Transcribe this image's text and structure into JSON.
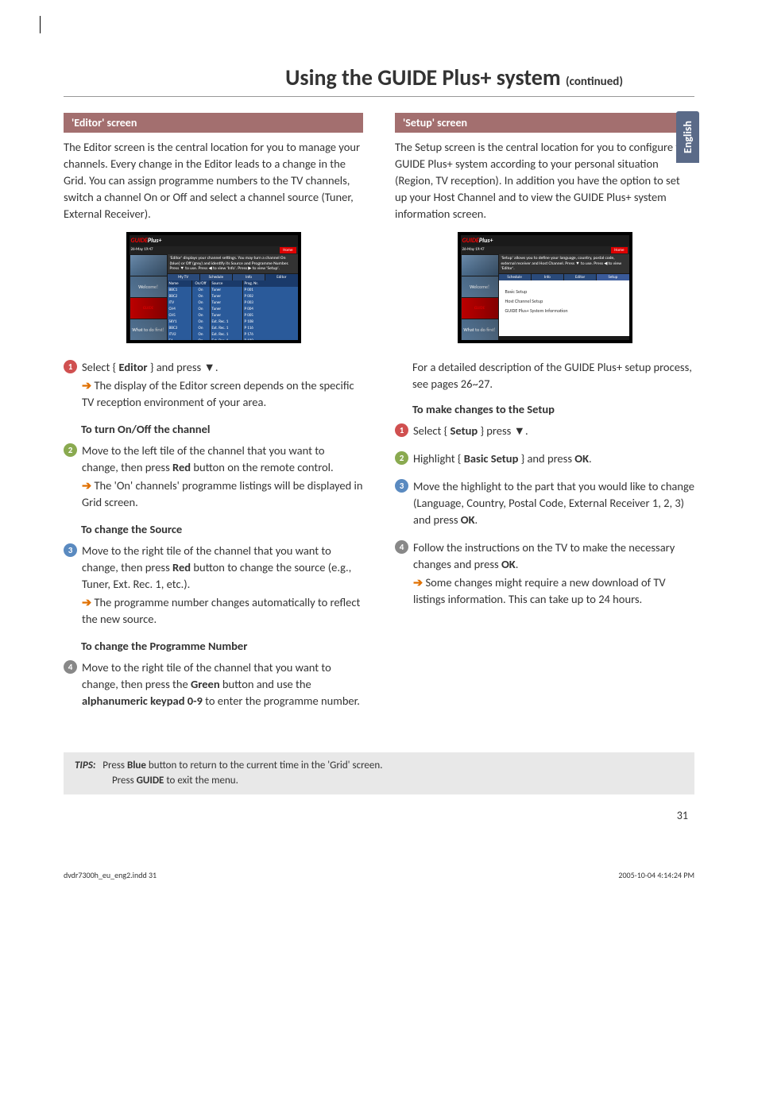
{
  "page_title_main": "Using the GUIDE Plus+ system",
  "page_title_cont": "(continued)",
  "language_tab": "English",
  "colors": {
    "header_bg": "#a36f6f",
    "tab_bg": "#5a6a88",
    "arrow": "#e07000",
    "tips_bg": "#e8e8e8",
    "step1": "#d05050",
    "step2": "#8aaa50",
    "step3": "#5a8ac0",
    "step4": "#888888"
  },
  "left": {
    "header": "'Editor' screen",
    "intro": "The Editor screen is the central location for you to manage your channels. Every change in the Editor leads to a change in the Grid. You can assign programme numbers to the TV channels, switch a channel On or Off and select a channel source (Tuner, External Receiver).",
    "screenshot": {
      "date": "26-May  19:47",
      "home": "Home",
      "desc": "'Editor' displays your channel settings. You may turn a channel On (blue) or Off (grey) and identify its Source and Programme Number. Press ▼ to use. Press ◀ to view 'Info'.  Press ▶ to view 'Setup'.",
      "tabs": [
        "My TV",
        "Schedule",
        "Info",
        "Editor"
      ],
      "thumbs": [
        "Welcome!",
        "",
        "What to do first!",
        ""
      ],
      "table_hdr": [
        "Name",
        "On/Off",
        "Source",
        "Prog. Nr."
      ],
      "rows": [
        [
          "BBC1",
          "On",
          "Tuner",
          "P 001"
        ],
        [
          "BBC2",
          "On",
          "Tuner",
          "P 002"
        ],
        [
          "ITV",
          "On",
          "Tuner",
          "P 003"
        ],
        [
          "CH4",
          "On",
          "Tuner",
          "P 004"
        ],
        [
          "CH5",
          "On",
          "Tuner",
          "P 005"
        ],
        [
          "SKY1",
          "On",
          "Ext. Rec. 1",
          "P 108"
        ],
        [
          "BBC3",
          "On",
          "Ext. Rec. 1",
          "P 116"
        ],
        [
          "ITV2",
          "On",
          "Ext. Rec. 1",
          "P 176"
        ],
        [
          "E4",
          "On",
          "Ext. Rec. 1",
          "P 189"
        ]
      ]
    },
    "step1_a": "Select { ",
    "step1_b": "Editor",
    "step1_c": " } and press ▼.",
    "step1_sub": "The display of the Editor screen depends on the specific TV reception environment of your area.",
    "sub1": "To turn On/Off the channel",
    "step2_a": "Move to the left tile of the channel that you want to change, then press ",
    "step2_b": "Red",
    "step2_c": " button on the remote control.",
    "step2_sub": "The 'On' channels' programme listings will be displayed in Grid screen.",
    "sub2": "To change the Source",
    "step3_a": "Move to the right tile of the channel that you want to change, then press ",
    "step3_b": "Red",
    "step3_c": " button to change the source (e.g., Tuner, Ext. Rec. 1, etc.).",
    "step3_sub": "The programme number changes automatically to reflect the new source.",
    "sub3": "To change the Programme Number",
    "step4_a": "Move to the right tile of the channel that you want to change, then press the ",
    "step4_b": "Green",
    "step4_c": " button and use the ",
    "step4_d": "alphanumeric keypad 0-9",
    "step4_e": " to enter the programme number."
  },
  "right": {
    "header": "'Setup' screen",
    "intro": "The Setup screen is the central location for you to configure the GUIDE Plus+ system according to your personal situation (Region, TV reception). In addition you have the option to set up your Host Channel and to view the GUIDE Plus+ system information screen.",
    "screenshot": {
      "date": "26-May  19:47",
      "home": "Home",
      "desc": "'Setup' allows you to define your language, country, postal code, external receiver and Host Channel. Press ▼ to use. Press ◀ to view 'Editor'.",
      "tabs": [
        "Schedule",
        "Info",
        "Editor",
        "Setup"
      ],
      "thumbs": [
        "Welcome!",
        "",
        "What to do first!",
        ""
      ],
      "rows": [
        "Basic Setup",
        "Host Channel Setup",
        "GUIDE Plus+ System Information"
      ]
    },
    "para": "For a detailed description of the GUIDE Plus+ setup process, see pages 26~27.",
    "sub1": "To make changes to the Setup",
    "step1_a": "Select { ",
    "step1_b": "Setup",
    "step1_c": " } press ▼.",
    "step2_a": "Highlight { ",
    "step2_b": "Basic Setup",
    "step2_c": " } and press ",
    "step2_d": "OK",
    "step2_e": ".",
    "step3_a": "Move the highlight to the part that you would like to change (Language, Country, Postal Code, External Receiver 1, 2, 3) and press ",
    "step3_b": "OK",
    "step3_c": ".",
    "step4_a": "Follow the instructions on the TV to make the necessary changes and press ",
    "step4_b": "OK",
    "step4_c": ".",
    "step4_sub": "Some changes might require a new download of TV listings information. This can take up to 24 hours."
  },
  "tips": {
    "label": "TIPS:",
    "l1a": "Press ",
    "l1b": "Blue",
    "l1c": " button to return to the current time in the 'Grid' screen.",
    "l2a": "Press ",
    "l2b": "GUIDE",
    "l2c": " to exit the menu."
  },
  "page_number": "31",
  "footer_left": "dvdr7300h_eu_eng2.indd   31",
  "footer_right": "2005-10-04   4:14:24 PM"
}
